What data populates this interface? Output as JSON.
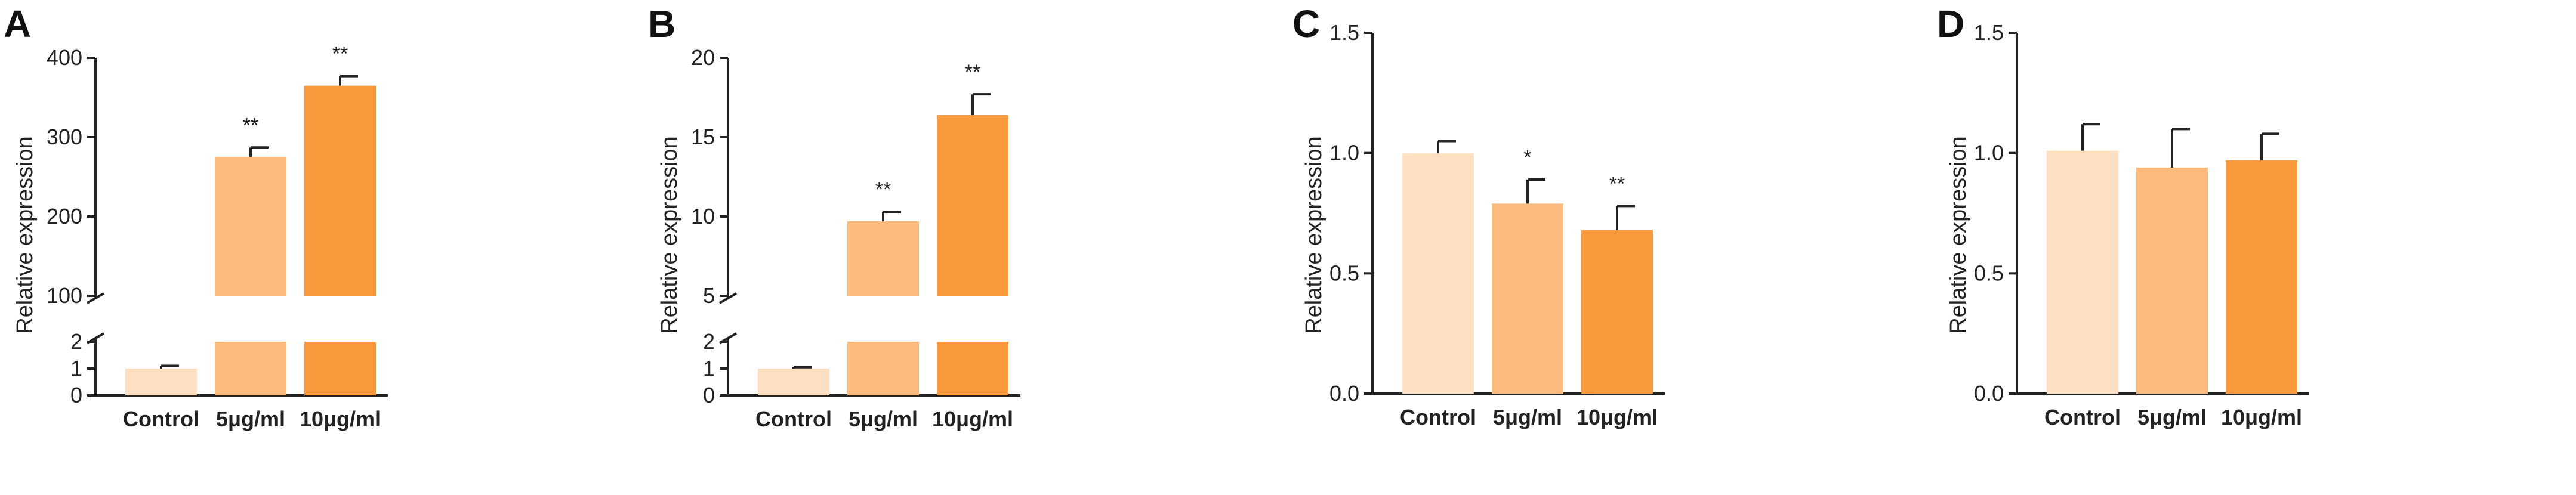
{
  "colors": {
    "control": "#fde0c2",
    "dose5": "#fdbb7e",
    "dose10": "#fa9a3d",
    "axis": "#222222"
  },
  "chart_data": [
    {
      "panel": "A",
      "type": "bar",
      "ylabel": "Relative expression",
      "categories": [
        "Control",
        "5μg/ml",
        "10μg/ml"
      ],
      "values": [
        1,
        275,
        365
      ],
      "errors": [
        0.1,
        12,
        12
      ],
      "significance": [
        "",
        "**",
        "**"
      ],
      "axis_break": true,
      "lower_ylim": [
        0,
        2
      ],
      "lower_ticks": [
        "0",
        "1",
        "2"
      ],
      "upper_ylim": [
        100,
        400
      ],
      "upper_ticks": [
        "100",
        "200",
        "300",
        "400"
      ]
    },
    {
      "panel": "B",
      "type": "bar",
      "ylabel": "Relative expression",
      "categories": [
        "Control",
        "5μg/ml",
        "10μg/ml"
      ],
      "values": [
        1,
        9.7,
        16.4
      ],
      "errors": [
        0.05,
        0.6,
        1.3
      ],
      "significance": [
        "",
        "**",
        "**"
      ],
      "axis_break": true,
      "lower_ylim": [
        0,
        2
      ],
      "lower_ticks": [
        "0",
        "1",
        "2"
      ],
      "upper_ylim": [
        5,
        20
      ],
      "upper_ticks": [
        "5",
        "10",
        "15",
        "20"
      ]
    },
    {
      "panel": "C",
      "type": "bar",
      "ylabel": "Relative expression",
      "categories": [
        "Control",
        "5μg/ml",
        "10μg/ml"
      ],
      "values": [
        1.0,
        0.79,
        0.68
      ],
      "errors": [
        0.05,
        0.1,
        0.1
      ],
      "significance": [
        "",
        "*",
        "**"
      ],
      "axis_break": false,
      "ylim": [
        0,
        1.5
      ],
      "ticks": [
        "0.0",
        "0.5",
        "1.0",
        "1.5"
      ]
    },
    {
      "panel": "D",
      "type": "bar",
      "ylabel": "Relative expression",
      "categories": [
        "Control",
        "5μg/ml",
        "10μg/ml"
      ],
      "values": [
        1.01,
        0.94,
        0.97
      ],
      "errors": [
        0.11,
        0.16,
        0.11
      ],
      "significance": [
        "",
        "",
        ""
      ],
      "axis_break": false,
      "ylim": [
        0,
        1.5
      ],
      "ticks": [
        "0.0",
        "0.5",
        "1.0",
        "1.5"
      ]
    }
  ]
}
